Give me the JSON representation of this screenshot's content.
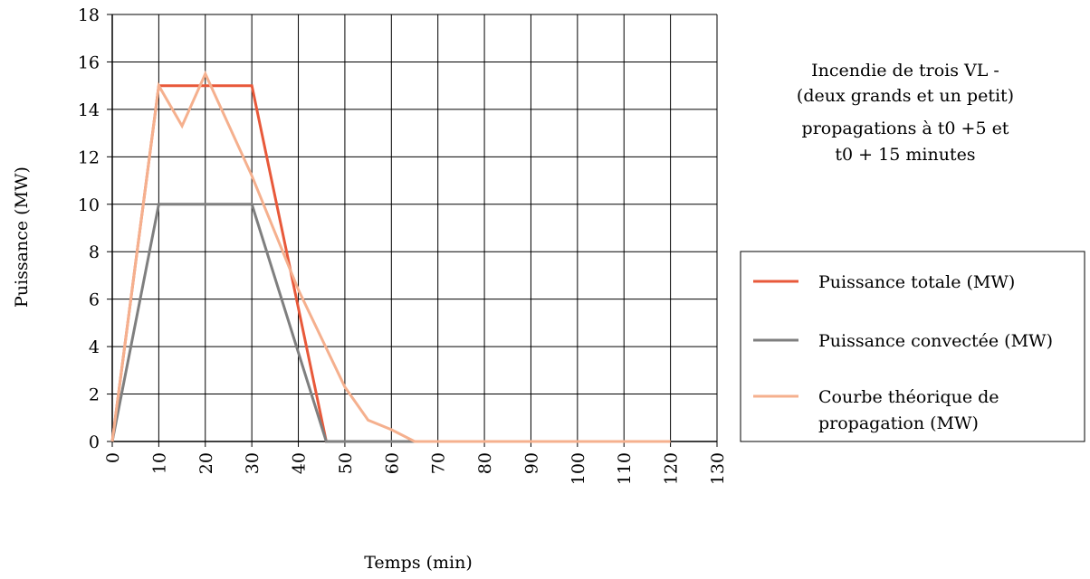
{
  "chart_data": {
    "type": "line",
    "title": "",
    "annotation": [
      "Incendie de trois VL -",
      "(deux grands et un petit)",
      "propagations à t0 +5 et",
      "t0 + 15 minutes"
    ],
    "xlabel": "Temps (min)",
    "ylabel": "Puissance (MW)",
    "xlim": [
      0,
      130
    ],
    "ylim": [
      0,
      18
    ],
    "xticks": [
      0,
      10,
      20,
      30,
      40,
      50,
      60,
      70,
      80,
      90,
      100,
      110,
      120,
      130
    ],
    "yticks": [
      0,
      2,
      4,
      6,
      8,
      10,
      12,
      14,
      16,
      18
    ],
    "grid": true,
    "legend_position": "right",
    "series": [
      {
        "name": "Puissance totale (MW)",
        "color": "#e8593a",
        "points": [
          [
            0,
            0
          ],
          [
            10,
            15
          ],
          [
            30,
            15
          ],
          [
            46,
            0
          ],
          [
            120,
            0
          ]
        ]
      },
      {
        "name": "Puissance convectée (MW)",
        "color": "#7f7f7f",
        "points": [
          [
            0,
            0
          ],
          [
            10,
            10
          ],
          [
            30,
            10
          ],
          [
            46,
            0
          ],
          [
            120,
            0
          ]
        ]
      },
      {
        "name": "Courbe théorique de propagation (MW)",
        "legend_lines": [
          "Courbe théorique de",
          "propagation (MW)"
        ],
        "color": "#f5b08e",
        "points": [
          [
            0,
            0
          ],
          [
            10,
            15
          ],
          [
            15,
            13.3
          ],
          [
            20,
            15.5
          ],
          [
            30,
            11.2
          ],
          [
            40,
            6.4
          ],
          [
            50,
            2.3
          ],
          [
            55,
            0.9
          ],
          [
            60,
            0.5
          ],
          [
            65,
            0
          ],
          [
            120,
            0
          ]
        ]
      }
    ]
  }
}
